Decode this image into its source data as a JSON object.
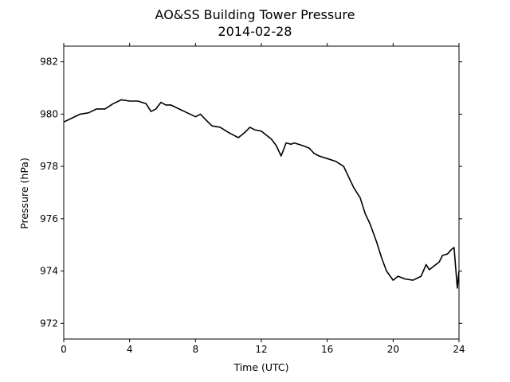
{
  "chart_data": {
    "type": "line",
    "title": "AO&SS Building Tower Pressure",
    "subtitle": "2014-02-28",
    "xlabel": "Time (UTC)",
    "ylabel": "Pressure (hPa)",
    "xlim": [
      0,
      24
    ],
    "ylim": [
      971.4,
      982.6
    ],
    "xticks": [
      0,
      4,
      8,
      12,
      16,
      20,
      24
    ],
    "yticks": [
      972,
      974,
      976,
      978,
      980,
      982
    ],
    "grid": false,
    "line_color": "#000000",
    "series": [
      {
        "x": [
          0,
          0.5,
          1,
          1.5,
          2,
          2.5,
          3,
          3.5,
          4,
          4.5,
          5,
          5.3,
          5.6,
          5.9,
          6.2,
          6.5,
          7,
          7.5,
          8,
          8.3,
          8.6,
          9,
          9.5,
          10,
          10.3,
          10.6,
          11,
          11.3,
          11.6,
          12,
          12.3,
          12.6,
          12.9,
          13.2,
          13.5,
          13.8,
          14,
          14.5,
          14.9,
          15.2,
          15.5,
          16,
          16.5,
          17,
          17.3,
          17.6,
          18,
          18.3,
          18.6,
          19,
          19.3,
          19.6,
          20,
          20.3,
          20.7,
          21.2,
          21.7,
          22,
          22.2,
          22.5,
          22.8,
          23,
          23.3,
          23.5,
          23.7,
          23.8,
          23.9,
          24
        ],
        "y": [
          979.7,
          979.85,
          980.0,
          980.05,
          980.2,
          980.2,
          980.4,
          980.55,
          980.5,
          980.5,
          980.4,
          980.1,
          980.2,
          980.45,
          980.35,
          980.35,
          980.2,
          980.05,
          979.9,
          980.0,
          979.8,
          979.55,
          979.5,
          979.3,
          979.2,
          979.1,
          979.3,
          979.5,
          979.4,
          979.35,
          979.2,
          979.05,
          978.8,
          978.4,
          978.9,
          978.85,
          978.9,
          978.8,
          978.7,
          978.5,
          978.4,
          978.3,
          978.2,
          978.0,
          977.6,
          977.2,
          976.8,
          976.2,
          975.8,
          975.1,
          974.5,
          974.0,
          973.65,
          973.8,
          973.7,
          973.65,
          973.8,
          974.25,
          974.05,
          974.2,
          974.35,
          974.6,
          974.65,
          974.8,
          974.9,
          974.1,
          973.35,
          974.0
        ]
      }
    ]
  }
}
